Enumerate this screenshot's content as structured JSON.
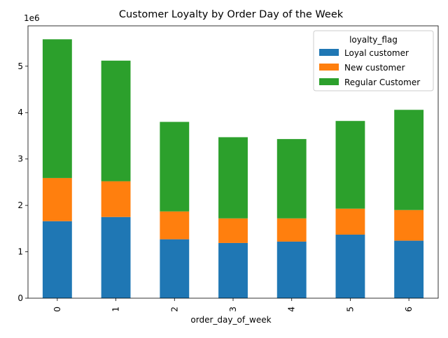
{
  "chart_data": {
    "type": "bar",
    "stacked": true,
    "title": "Customer Loyalty by Order Day of the Week",
    "xlabel": "order_day_of_week",
    "ylabel": "",
    "y_scale_label": "1e6",
    "categories": [
      "0",
      "1",
      "2",
      "3",
      "4",
      "5",
      "6"
    ],
    "y_ticks": [
      "0",
      "1",
      "2",
      "3",
      "4",
      "5"
    ],
    "ylim": [
      0,
      5.87
    ],
    "grid": false,
    "legend": {
      "title": "loyalty_flag",
      "placement": "top-right"
    },
    "series": [
      {
        "name": "Loyal customer",
        "color": "#1f77b4",
        "values": [
          1.66,
          1.75,
          1.27,
          1.19,
          1.22,
          1.37,
          1.24
        ]
      },
      {
        "name": "New customer",
        "color": "#ff7f0e",
        "values": [
          0.93,
          0.77,
          0.6,
          0.53,
          0.5,
          0.56,
          0.66
        ]
      },
      {
        "name": "Regular Customer",
        "color": "#2ca02c",
        "values": [
          2.99,
          2.6,
          1.93,
          1.75,
          1.71,
          1.89,
          2.16
        ]
      }
    ]
  }
}
